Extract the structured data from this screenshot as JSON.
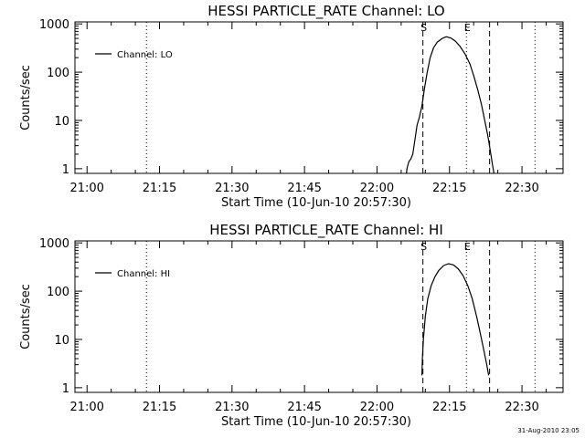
{
  "footer_timestamp": "31-Aug-2010 23:05",
  "chart_data": [
    {
      "type": "line",
      "title": "HESSI PARTICLE_RATE Channel: LO",
      "xlabel": "Start Time (10-Jun-10 20:57:30)",
      "ylabel": "Counts/sec",
      "yscale": "log",
      "ylim": [
        0.8,
        1100
      ],
      "xlim_minutes": [
        -2.5,
        98.5
      ],
      "xticks": [
        {
          "label": "21:00",
          "minute": 0
        },
        {
          "label": "21:15",
          "minute": 15
        },
        {
          "label": "21:30",
          "minute": 30
        },
        {
          "label": "21:45",
          "minute": 45
        },
        {
          "label": "22:00",
          "minute": 60
        },
        {
          "label": "22:15",
          "minute": 75
        },
        {
          "label": "22:30",
          "minute": 90
        }
      ],
      "yticks": [
        {
          "label": "1",
          "value": 1
        },
        {
          "label": "10",
          "value": 10
        },
        {
          "label": "100",
          "value": 100
        },
        {
          "label": "1000",
          "value": 1000
        }
      ],
      "legend": {
        "entries": [
          "Channel: LO"
        ],
        "position": "top-left"
      },
      "markers": [
        {
          "label": "S",
          "minute": 69.5,
          "style": "dashed"
        },
        {
          "label": "E",
          "minute": 78.5,
          "style": "dotted"
        },
        {
          "label": "",
          "minute": 83.3,
          "style": "dashed"
        },
        {
          "label": "",
          "minute": 12.3,
          "style": "dotted"
        },
        {
          "label": "",
          "minute": 92.7,
          "style": "dotted"
        }
      ],
      "series": [
        {
          "name": "Channel: LO",
          "points": [
            [
              66.1,
              0.8
            ],
            [
              66.2,
              1.0
            ],
            [
              66.6,
              1.4
            ],
            [
              67.0,
              1.6
            ],
            [
              67.4,
              2.0
            ],
            [
              67.7,
              3.2
            ],
            [
              68.0,
              5.0
            ],
            [
              68.3,
              8.0
            ],
            [
              68.8,
              12.0
            ],
            [
              69.3,
              20.0
            ],
            [
              69.8,
              45.0
            ],
            [
              70.4,
              100.0
            ],
            [
              71.0,
              200.0
            ],
            [
              71.7,
              320.0
            ],
            [
              72.5,
              420.0
            ],
            [
              73.5,
              500.0
            ],
            [
              74.3,
              540.0
            ],
            [
              75.3,
              510.0
            ],
            [
              76.2,
              440.0
            ],
            [
              77.2,
              340.0
            ],
            [
              78.2,
              240.0
            ],
            [
              79.2,
              150.0
            ],
            [
              80.0,
              85.0
            ],
            [
              80.8,
              45.0
            ],
            [
              81.6,
              22.0
            ],
            [
              82.3,
              10.0
            ],
            [
              82.9,
              5.0
            ],
            [
              83.4,
              2.5
            ],
            [
              83.9,
              1.2
            ],
            [
              84.2,
              0.8
            ]
          ]
        }
      ]
    },
    {
      "type": "line",
      "title": "HESSI PARTICLE_RATE Channel: HI",
      "xlabel": "Start Time (10-Jun-10 20:57:30)",
      "ylabel": "Counts/sec",
      "yscale": "log",
      "ylim": [
        0.8,
        1100
      ],
      "xlim_minutes": [
        -2.5,
        98.5
      ],
      "xticks": [
        {
          "label": "21:00",
          "minute": 0
        },
        {
          "label": "21:15",
          "minute": 15
        },
        {
          "label": "21:30",
          "minute": 30
        },
        {
          "label": "21:45",
          "minute": 45
        },
        {
          "label": "22:00",
          "minute": 60
        },
        {
          "label": "22:15",
          "minute": 75
        },
        {
          "label": "22:30",
          "minute": 90
        }
      ],
      "yticks": [
        {
          "label": "1",
          "value": 1
        },
        {
          "label": "10",
          "value": 10
        },
        {
          "label": "100",
          "value": 100
        },
        {
          "label": "1000",
          "value": 1000
        }
      ],
      "legend": {
        "entries": [
          "Channel: HI"
        ],
        "position": "top-left"
      },
      "markers": [
        {
          "label": "S",
          "minute": 69.5,
          "style": "dashed"
        },
        {
          "label": "E",
          "minute": 78.5,
          "style": "dotted"
        },
        {
          "label": "",
          "minute": 83.3,
          "style": "dashed"
        },
        {
          "label": "",
          "minute": 12.3,
          "style": "dotted"
        },
        {
          "label": "",
          "minute": 92.7,
          "style": "dotted"
        }
      ],
      "series": [
        {
          "name": "Channel: HI",
          "points": [
            [
              69.3,
              1.8
            ],
            [
              69.4,
              4.0
            ],
            [
              69.6,
              10.0
            ],
            [
              70.0,
              30.0
            ],
            [
              70.5,
              70.0
            ],
            [
              71.2,
              130.0
            ],
            [
              72.0,
              200.0
            ],
            [
              72.8,
              270.0
            ],
            [
              73.8,
              340.0
            ],
            [
              74.8,
              370.0
            ],
            [
              75.8,
              350.0
            ],
            [
              76.8,
              290.0
            ],
            [
              77.8,
              210.0
            ],
            [
              78.8,
              130.0
            ],
            [
              79.7,
              70.0
            ],
            [
              80.6,
              30.0
            ],
            [
              81.4,
              13.0
            ],
            [
              82.1,
              6.0
            ],
            [
              82.7,
              3.0
            ],
            [
              83.1,
              1.8
            ]
          ]
        }
      ]
    }
  ]
}
